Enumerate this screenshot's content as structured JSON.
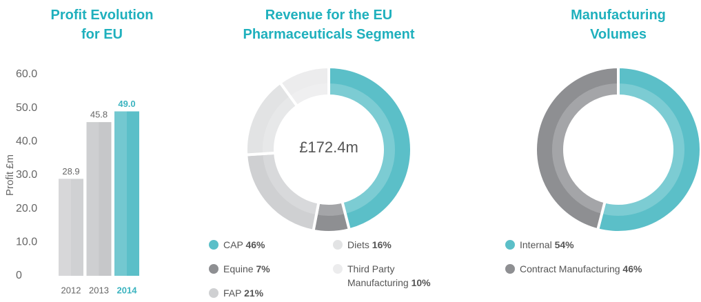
{
  "chart_data": [
    {
      "type": "bar",
      "title": "Profit Evolution for EU",
      "y_label": "Profit £m",
      "categories": [
        "2012",
        "2013",
        "2014"
      ],
      "values": [
        28.9,
        45.8,
        49.0
      ],
      "value_labels": [
        "28.9",
        "45.8",
        "49.0"
      ],
      "colors": [
        "#d0d1d3",
        "#c6c7c9",
        "#5bbfc8"
      ],
      "label_colors": [
        "#666666",
        "#666666",
        "#3cb4c0"
      ],
      "ylim": [
        0,
        60
      ],
      "yticks": [
        0,
        {
          "value": 10,
          "label": "10.0"
        },
        {
          "value": 20,
          "label": "20.0"
        },
        {
          "value": 30,
          "label": "30.0"
        },
        {
          "value": 40,
          "label": "40.0"
        },
        {
          "value": 50,
          "label": "50.0"
        },
        {
          "value": 60,
          "label": "60.0"
        }
      ]
    },
    {
      "type": "donut",
      "title": "Revenue for the EU Pharmaceuticals Segment",
      "center_label": "£172.4m",
      "categories": [
        "CAP",
        "Equine",
        "FAP",
        "Diets",
        "Third Party Manufacturing"
      ],
      "values": [
        46,
        7,
        21,
        16,
        10
      ],
      "value_labels": [
        "46%",
        "7%",
        "21%",
        "16%",
        "10%"
      ],
      "colors": [
        "#5bbfc8",
        "#8e8f92",
        "#cfd0d2",
        "#e2e3e4",
        "#ececed"
      ]
    },
    {
      "type": "donut",
      "title": "Manufacturing Volumes",
      "categories": [
        "Internal",
        "Contract Manufacturing"
      ],
      "values": [
        54,
        46
      ],
      "value_labels": [
        "54%",
        "46%"
      ],
      "colors": [
        "#5bbfc8",
        "#8e8f92"
      ]
    }
  ]
}
